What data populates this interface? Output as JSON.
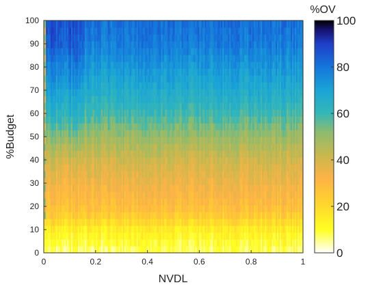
{
  "chart_data": {
    "type": "heatmap",
    "title": "",
    "xlabel": "NVDL",
    "ylabel": "%Budget",
    "xlim": [
      0,
      1
    ],
    "ylim": [
      0,
      100
    ],
    "x_ticks": [
      0,
      0.2,
      0.4,
      0.6,
      0.8,
      1
    ],
    "x_tick_labels": [
      "0",
      "0.2",
      "0.4",
      "0.6",
      "0.8",
      "1"
    ],
    "y_ticks": [
      0,
      10,
      20,
      30,
      40,
      50,
      60,
      70,
      80,
      90,
      100
    ],
    "y_tick_labels": [
      "0",
      "10",
      "20",
      "30",
      "40",
      "50",
      "60",
      "70",
      "80",
      "90",
      "100"
    ],
    "colorbar": {
      "label": "%OV",
      "range": [
        0,
        100
      ],
      "ticks": [
        0,
        20,
        40,
        60,
        80,
        100
      ],
      "tick_labels": [
        "0",
        "20",
        "40",
        "60",
        "80",
        "100"
      ],
      "colormap_stops": [
        {
          "value": 0,
          "color": "#ffffff"
        },
        {
          "value": 10,
          "color": "#ffff22"
        },
        {
          "value": 22,
          "color": "#ffd22e"
        },
        {
          "value": 32,
          "color": "#fdb346"
        },
        {
          "value": 42,
          "color": "#c8b84e"
        },
        {
          "value": 52,
          "color": "#8dbb6e"
        },
        {
          "value": 60,
          "color": "#34b7b8"
        },
        {
          "value": 70,
          "color": "#1aa4d6"
        },
        {
          "value": 80,
          "color": "#1576dc"
        },
        {
          "value": 90,
          "color": "#1f3fc8"
        },
        {
          "value": 96,
          "color": "#17126e"
        },
        {
          "value": 100,
          "color": "#000000"
        }
      ]
    },
    "profile": {
      "description_budget": [
        0,
        5,
        10,
        15,
        20,
        25,
        30,
        40,
        50,
        60,
        70,
        80,
        90,
        100
      ],
      "ov_typical": [
        6,
        10,
        14,
        22,
        28,
        31,
        34,
        40,
        49,
        59,
        66,
        72,
        78,
        81
      ],
      "ov_low_nvdl_band": [
        6,
        10,
        14,
        22,
        27,
        30,
        33,
        40,
        52,
        63,
        70,
        77,
        84,
        87
      ],
      "low_nvdl_band_xmax": 0.16
    },
    "grid": false,
    "legend": "colorbar-right"
  }
}
